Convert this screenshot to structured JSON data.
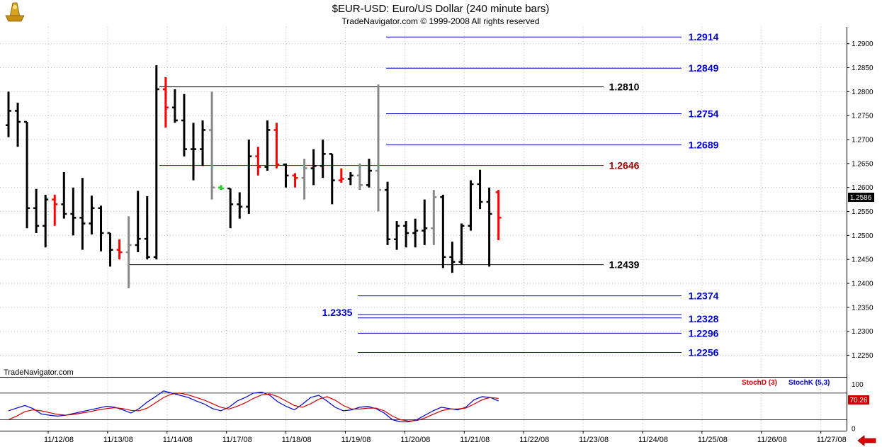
{
  "header": {
    "title": "$EUR-USD:  Euro/US Dollar  (240 minute bars)",
    "copyright": "TradeNavigator.com © 1999-2008 All rights reserved",
    "watermark": "TradeNavigator.com"
  },
  "colors": {
    "up_bar": "#000000",
    "down_bar": "#ff0000",
    "neutral_bar": "#888888",
    "blue_level": "#0000cc",
    "red_level": "#990000",
    "stoch_d": "#cc0000",
    "stoch_k": "#0000cc",
    "arrow": "#dd0000"
  },
  "chart_data": [
    {
      "type": "ohlc",
      "name": "price",
      "ylim": [
        1.2205,
        1.2935
      ],
      "yticks": [
        "1.2900",
        "1.2850",
        "1.2800",
        "1.2750",
        "1.2700",
        "1.2650",
        "1.2600",
        "1.2550",
        "1.2500",
        "1.2450",
        "1.2400",
        "1.2350",
        "1.2300",
        "1.2250"
      ],
      "last_price_label": "1.2586",
      "x_labels": [
        "11/12/08",
        "11/13/08",
        "11/14/08",
        "11/17/08",
        "11/18/08",
        "11/19/08",
        "11/20/08",
        "11/21/08",
        "11/22/08",
        "11/23/08",
        "11/24/08",
        "11/25/08",
        "11/26/08",
        "11/27/08"
      ],
      "bars": [
        {
          "o": 1.273,
          "h": 1.28,
          "l": 1.2705,
          "c": 1.276,
          "col": "black"
        },
        {
          "o": 1.276,
          "h": 1.2777,
          "l": 1.2685,
          "c": 1.2737,
          "col": "black"
        },
        {
          "o": 1.2737,
          "h": 1.2737,
          "l": 1.2515,
          "c": 1.2557,
          "col": "black"
        },
        {
          "o": 1.2557,
          "h": 1.2597,
          "l": 1.2505,
          "c": 1.252,
          "col": "black"
        },
        {
          "o": 1.252,
          "h": 1.2585,
          "l": 1.2475,
          "c": 1.2575,
          "col": "black"
        },
        {
          "o": 1.2575,
          "h": 1.2585,
          "l": 1.252,
          "c": 1.2565,
          "col": "red"
        },
        {
          "o": 1.2565,
          "h": 1.2632,
          "l": 1.2535,
          "c": 1.2545,
          "col": "black"
        },
        {
          "o": 1.2545,
          "h": 1.26,
          "l": 1.25,
          "c": 1.2537,
          "col": "black"
        },
        {
          "o": 1.2537,
          "h": 1.262,
          "l": 1.247,
          "c": 1.2525,
          "col": "black"
        },
        {
          "o": 1.2525,
          "h": 1.2583,
          "l": 1.2502,
          "c": 1.2557,
          "col": "black"
        },
        {
          "o": 1.2557,
          "h": 1.2562,
          "l": 1.2467,
          "c": 1.2505,
          "col": "black"
        },
        {
          "o": 1.2505,
          "h": 1.2505,
          "l": 1.2435,
          "c": 1.247,
          "col": "black"
        },
        {
          "o": 1.247,
          "h": 1.2492,
          "l": 1.245,
          "c": 1.2465,
          "col": "red"
        },
        {
          "o": 1.2465,
          "h": 1.254,
          "l": 1.239,
          "c": 1.248,
          "col": "gray"
        },
        {
          "o": 1.248,
          "h": 1.2593,
          "l": 1.2465,
          "c": 1.2493,
          "col": "black"
        },
        {
          "o": 1.2493,
          "h": 1.2582,
          "l": 1.245,
          "c": 1.2455,
          "col": "black"
        },
        {
          "o": 1.2455,
          "h": 1.2855,
          "l": 1.245,
          "c": 1.2805,
          "col": "black"
        },
        {
          "o": 1.2805,
          "h": 1.283,
          "l": 1.2725,
          "c": 1.2767,
          "col": "red"
        },
        {
          "o": 1.2767,
          "h": 1.2805,
          "l": 1.2735,
          "c": 1.274,
          "col": "black"
        },
        {
          "o": 1.274,
          "h": 1.2795,
          "l": 1.2665,
          "c": 1.268,
          "col": "black"
        },
        {
          "o": 1.268,
          "h": 1.2735,
          "l": 1.2615,
          "c": 1.268,
          "col": "black"
        },
        {
          "o": 1.268,
          "h": 1.274,
          "l": 1.2645,
          "c": 1.272,
          "col": "black"
        },
        {
          "o": 1.272,
          "h": 1.28,
          "l": 1.2575,
          "c": 1.26,
          "col": "gray"
        },
        {
          "o": 1.26,
          "h": 1.2605,
          "l": 1.2595,
          "c": 1.2598,
          "col": "green"
        },
        {
          "o": 1.2598,
          "h": 1.2598,
          "l": 1.2515,
          "c": 1.2565,
          "col": "black"
        },
        {
          "o": 1.2565,
          "h": 1.259,
          "l": 1.2535,
          "c": 1.256,
          "col": "black"
        },
        {
          "o": 1.256,
          "h": 1.27,
          "l": 1.2545,
          "c": 1.2665,
          "col": "black"
        },
        {
          "o": 1.2665,
          "h": 1.2685,
          "l": 1.2625,
          "c": 1.2643,
          "col": "red"
        },
        {
          "o": 1.2643,
          "h": 1.274,
          "l": 1.2635,
          "c": 1.272,
          "col": "black"
        },
        {
          "o": 1.272,
          "h": 1.2735,
          "l": 1.264,
          "c": 1.2648,
          "col": "red"
        },
        {
          "o": 1.2648,
          "h": 1.265,
          "l": 1.26,
          "c": 1.2625,
          "col": "black"
        },
        {
          "o": 1.2625,
          "h": 1.263,
          "l": 1.26,
          "c": 1.262,
          "col": "red"
        },
        {
          "o": 1.262,
          "h": 1.266,
          "l": 1.2575,
          "c": 1.264,
          "col": "gray"
        },
        {
          "o": 1.264,
          "h": 1.268,
          "l": 1.2605,
          "c": 1.2645,
          "col": "black"
        },
        {
          "o": 1.2645,
          "h": 1.27,
          "l": 1.262,
          "c": 1.267,
          "col": "black"
        },
        {
          "o": 1.267,
          "h": 1.267,
          "l": 1.2565,
          "c": 1.2615,
          "col": "black"
        },
        {
          "o": 1.2615,
          "h": 1.264,
          "l": 1.261,
          "c": 1.2618,
          "col": "red"
        },
        {
          "o": 1.2618,
          "h": 1.2632,
          "l": 1.2605,
          "c": 1.2625,
          "col": "black"
        },
        {
          "o": 1.2625,
          "h": 1.265,
          "l": 1.2595,
          "c": 1.2605,
          "col": "gray"
        },
        {
          "o": 1.2605,
          "h": 1.266,
          "l": 1.26,
          "c": 1.2635,
          "col": "black"
        },
        {
          "o": 1.2635,
          "h": 1.2815,
          "l": 1.255,
          "c": 1.2595,
          "col": "gray"
        },
        {
          "o": 1.2595,
          "h": 1.2612,
          "l": 1.248,
          "c": 1.2492,
          "col": "black"
        },
        {
          "o": 1.2492,
          "h": 1.253,
          "l": 1.247,
          "c": 1.252,
          "col": "black"
        },
        {
          "o": 1.252,
          "h": 1.253,
          "l": 1.2475,
          "c": 1.2505,
          "col": "black"
        },
        {
          "o": 1.2505,
          "h": 1.2535,
          "l": 1.2475,
          "c": 1.251,
          "col": "black"
        },
        {
          "o": 1.251,
          "h": 1.2575,
          "l": 1.248,
          "c": 1.2515,
          "col": "black"
        },
        {
          "o": 1.2515,
          "h": 1.2595,
          "l": 1.248,
          "c": 1.258,
          "col": "gray"
        },
        {
          "o": 1.258,
          "h": 1.2585,
          "l": 1.2432,
          "c": 1.2455,
          "col": "black"
        },
        {
          "o": 1.2455,
          "h": 1.2487,
          "l": 1.2422,
          "c": 1.2445,
          "col": "black"
        },
        {
          "o": 1.2445,
          "h": 1.2525,
          "l": 1.244,
          "c": 1.252,
          "col": "black"
        },
        {
          "o": 1.252,
          "h": 1.2615,
          "l": 1.251,
          "c": 1.2607,
          "col": "black"
        },
        {
          "o": 1.2607,
          "h": 1.2637,
          "l": 1.2555,
          "c": 1.257,
          "col": "black"
        },
        {
          "o": 1.257,
          "h": 1.26,
          "l": 1.2435,
          "c": 1.2545,
          "col": "black"
        },
        {
          "o": 1.259,
          "h": 1.2595,
          "l": 1.249,
          "c": 1.2537,
          "col": "red"
        }
      ],
      "lines": [
        {
          "value": 1.2914,
          "label": "1.2914",
          "color": "blue",
          "x0": 545,
          "x1": 962
        },
        {
          "value": 1.2849,
          "label": "1.2849",
          "color": "blue",
          "x0": 545,
          "x1": 962
        },
        {
          "value": 1.281,
          "label": "1.2810",
          "color": "black",
          "x0": 225,
          "x1": 852
        },
        {
          "value": 1.2754,
          "label": "1.2754",
          "color": "blue",
          "x0": 545,
          "x1": 962
        },
        {
          "value": 1.2689,
          "label": "1.2689",
          "color": "blue",
          "x0": 545,
          "x1": 962
        },
        {
          "value": 1.2646,
          "label": "1.2646",
          "color": "darkred",
          "x0": 225,
          "x1": 852
        },
        {
          "value": 1.2439,
          "label": "1.2439",
          "color": "black",
          "x0": 181,
          "x1": 852
        },
        {
          "value": 1.2374,
          "label": "1.2374",
          "color": "blue",
          "x0": 505,
          "x1": 962
        },
        {
          "value": 1.2335,
          "label": "1.2335",
          "color": "blue",
          "x0": 505,
          "x1": 962
        },
        {
          "value": 1.2328,
          "label": "1.2328",
          "color": "blue",
          "x0": 505,
          "x1": 962
        },
        {
          "value": 1.2296,
          "label": "1.2296",
          "color": "blue",
          "x0": 505,
          "x1": 962
        },
        {
          "value": 1.2256,
          "label": "1.2256",
          "color": "blue",
          "x0": 505,
          "x1": 962
        }
      ]
    },
    {
      "type": "line",
      "name": "stochastic",
      "ylim": [
        -5,
        115
      ],
      "yticks": [
        "100",
        "0"
      ],
      "reference_lines": [
        80,
        20
      ],
      "last_value_label": "70.26",
      "legend": [
        "StochD (3)",
        "StochK (5,3)"
      ],
      "series": [
        {
          "name": "StochK (5,3)",
          "values": [
            40,
            46,
            52,
            45,
            33,
            30,
            28,
            30,
            34,
            38,
            42,
            46,
            50,
            48,
            42,
            35,
            45,
            60,
            72,
            85,
            80,
            75,
            70,
            62,
            55,
            45,
            40,
            48,
            62,
            70,
            80,
            82,
            75,
            60,
            50,
            42,
            55,
            70,
            75,
            62,
            48,
            40,
            42,
            48,
            50,
            45,
            35,
            20,
            15,
            15,
            20,
            30,
            40,
            48,
            45,
            42,
            48,
            65,
            72,
            70,
            62
          ]
        },
        {
          "name": "StochD (3)",
          "values": [
            20,
            28,
            38,
            42,
            40,
            36,
            32,
            30,
            32,
            35,
            38,
            42,
            45,
            47,
            45,
            41,
            40,
            46,
            58,
            70,
            78,
            80,
            76,
            70,
            64,
            56,
            48,
            44,
            50,
            58,
            68,
            76,
            78,
            72,
            62,
            52,
            48,
            56,
            66,
            72,
            64,
            52,
            44,
            44,
            46,
            46,
            40,
            28,
            20,
            17,
            18,
            24,
            32,
            40,
            44,
            44,
            46,
            55,
            65,
            70,
            68
          ]
        }
      ]
    }
  ]
}
